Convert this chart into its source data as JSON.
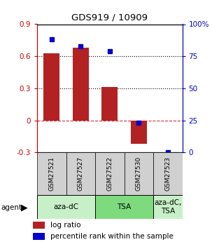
{
  "title": "GDS919 / 10909",
  "samples": [
    "GSM27521",
    "GSM27527",
    "GSM27522",
    "GSM27530",
    "GSM27523"
  ],
  "log_ratios": [
    0.63,
    0.68,
    0.31,
    -0.22,
    0.0
  ],
  "percentile_ranks": [
    88,
    83,
    79,
    23,
    0
  ],
  "agent_groups": [
    {
      "label": "aza-dC",
      "span": [
        0,
        2
      ],
      "color": "#c8f0c8"
    },
    {
      "label": "TSA",
      "span": [
        2,
        4
      ],
      "color": "#7dda7d"
    },
    {
      "label": "aza-dC,\nTSA",
      "span": [
        4,
        5
      ],
      "color": "#c8f0c8"
    }
  ],
  "bar_color": "#b22222",
  "point_color": "#0000cc",
  "ylim": [
    -0.3,
    0.9
  ],
  "y2lim": [
    0,
    100
  ],
  "yticks": [
    -0.3,
    0,
    0.3,
    0.6,
    0.9
  ],
  "y2ticks": [
    0,
    25,
    50,
    75,
    100
  ],
  "hlines_dotted": [
    0.3,
    0.6
  ],
  "hline_dashed": 0.0,
  "sample_box_color": "#d0d0d0",
  "background_color": "#ffffff"
}
